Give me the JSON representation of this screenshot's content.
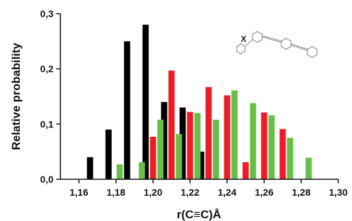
{
  "chart_data": {
    "type": "bar",
    "xlabel": "r(C≡C)Å",
    "ylabel": "Relative probability",
    "xlim": [
      1.15,
      1.3
    ],
    "ylim": [
      0,
      0.3
    ],
    "x_ticks": [
      "1,16",
      "1,18",
      "1,20",
      "1,22",
      "1,24",
      "1,26",
      "1,28",
      "1,30"
    ],
    "y_ticks": [
      "0,0",
      "0,1",
      "0,2",
      "0,3"
    ],
    "grid": false,
    "legend": "none",
    "series": [
      {
        "color": "#000000",
        "points": [
          [
            1.166,
            0.04
          ],
          [
            1.176,
            0.09
          ],
          [
            1.186,
            0.25
          ],
          [
            1.196,
            0.28
          ],
          [
            1.206,
            0.14
          ],
          [
            1.216,
            0.13
          ],
          [
            1.226,
            0.05
          ]
        ]
      },
      {
        "color": "#ee1c24",
        "points": [
          [
            1.2,
            0.077
          ],
          [
            1.21,
            0.197
          ],
          [
            1.22,
            0.122
          ],
          [
            1.23,
            0.167
          ],
          [
            1.24,
            0.152
          ],
          [
            1.25,
            0.031
          ],
          [
            1.26,
            0.121
          ],
          [
            1.27,
            0.091
          ]
        ]
      },
      {
        "color": "#66c048",
        "points": [
          [
            1.182,
            0.027
          ],
          [
            1.194,
            0.031
          ],
          [
            1.204,
            0.108
          ],
          [
            1.214,
            0.082
          ],
          [
            1.224,
            0.12
          ],
          [
            1.234,
            0.108
          ],
          [
            1.244,
            0.161
          ],
          [
            1.254,
            0.138
          ],
          [
            1.264,
            0.116
          ],
          [
            1.274,
            0.075
          ],
          [
            1.284,
            0.039
          ]
        ]
      }
    ],
    "annotation": "X"
  }
}
